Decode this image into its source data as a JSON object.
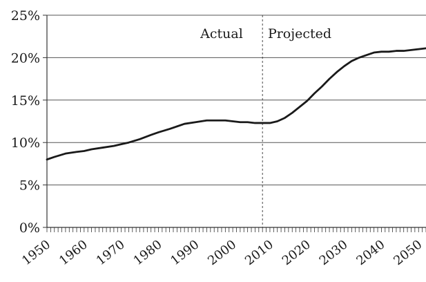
{
  "chart_data": {
    "type": "line",
    "title": "",
    "xlabel": "",
    "ylabel": "",
    "xlim": [
      1950,
      2052
    ],
    "ylim": [
      0,
      25
    ],
    "y_ticks": [
      0,
      5,
      10,
      15,
      20,
      25
    ],
    "y_tick_labels": [
      "0%",
      "5%",
      "10%",
      "15%",
      "20%",
      "25%"
    ],
    "x_ticks": [
      1950,
      1960,
      1970,
      1980,
      1990,
      2000,
      2010,
      2020,
      2030,
      2040,
      2050
    ],
    "x_tick_labels": [
      "1950",
      "1960",
      "1970",
      "1980",
      "1990",
      "2000",
      "2010",
      "2020",
      "2030",
      "2040",
      "2050"
    ],
    "x_minor_tick_step": 1,
    "grid": "horizontal",
    "divider_x": 2008,
    "annotations": [
      {
        "text": "Actual",
        "x": 1997,
        "y": 22.3
      },
      {
        "text": "Projected",
        "x": 2018,
        "y": 22.3
      }
    ],
    "series": [
      {
        "color": "#1a1a1a",
        "x": [
          1950,
          1952,
          1955,
          1958,
          1960,
          1962,
          1965,
          1968,
          1970,
          1972,
          1975,
          1978,
          1980,
          1983,
          1985,
          1987,
          1990,
          1993,
          1995,
          1998,
          2000,
          2002,
          2004,
          2006,
          2008,
          2010,
          2012,
          2014,
          2016,
          2018,
          2020,
          2022,
          2024,
          2026,
          2028,
          2030,
          2032,
          2034,
          2036,
          2038,
          2040,
          2042,
          2044,
          2046,
          2048,
          2050,
          2052
        ],
        "y": [
          8.0,
          8.3,
          8.7,
          8.9,
          9.0,
          9.2,
          9.4,
          9.6,
          9.8,
          10.0,
          10.4,
          10.9,
          11.2,
          11.6,
          11.9,
          12.2,
          12.4,
          12.6,
          12.6,
          12.6,
          12.5,
          12.4,
          12.4,
          12.3,
          12.3,
          12.3,
          12.5,
          12.9,
          13.5,
          14.2,
          14.9,
          15.8,
          16.6,
          17.5,
          18.3,
          19.0,
          19.6,
          20.0,
          20.3,
          20.6,
          20.7,
          20.7,
          20.8,
          20.8,
          20.9,
          21.0,
          21.1
        ]
      }
    ]
  }
}
